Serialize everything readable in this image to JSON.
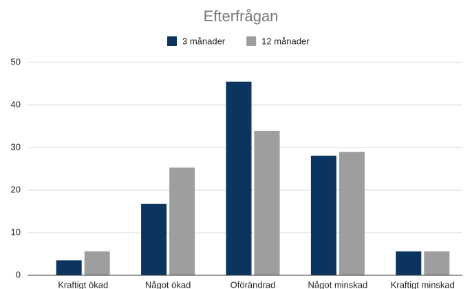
{
  "chart_data": {
    "type": "bar",
    "title": "Efterfrågan",
    "categories": [
      "Kraftigt ökad",
      "Något ökad",
      "Oförändrad",
      "Något minskad",
      "Kraftigt minskad"
    ],
    "series": [
      {
        "name": "3 månader",
        "color": "#0b355f",
        "values": [
          3.5,
          16.8,
          45.5,
          28.1,
          5.6
        ]
      },
      {
        "name": "12 månader",
        "color": "#9e9e9e",
        "values": [
          5.6,
          25.3,
          33.9,
          29.0,
          5.6
        ]
      }
    ],
    "ylim": [
      0,
      50
    ],
    "yticks": [
      0,
      10,
      20,
      30,
      40,
      50
    ],
    "grid": true,
    "legend": "top"
  }
}
